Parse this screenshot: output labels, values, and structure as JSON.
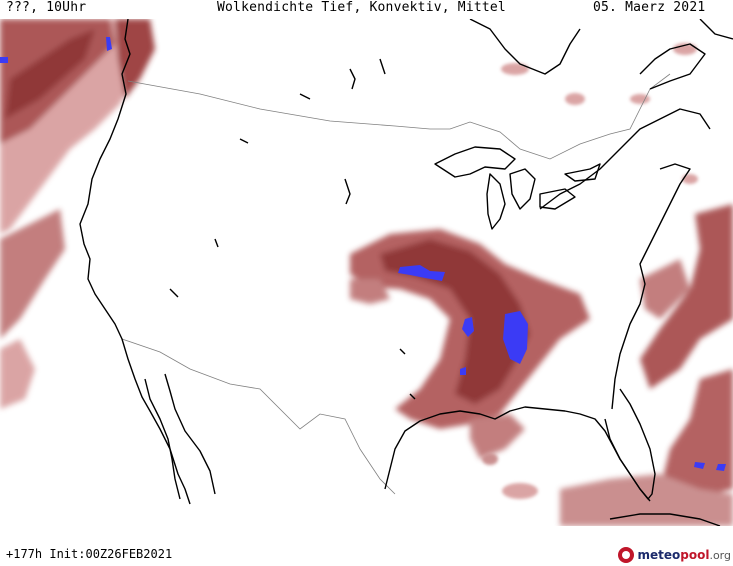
{
  "header": {
    "left": "???, 10Uhr",
    "title": "Wolkendichte  Tief, Konvektiv, Mittel",
    "date": "05. Maerz 2021"
  },
  "footer": {
    "run_info": "+177h Init:00Z26FEB2021",
    "logo": {
      "brand_a": "meteo",
      "brand_b": "pool",
      "brand_c": ".org"
    }
  },
  "legend_colors": {
    "cloud_dark": "#8b2e2e",
    "cloud_mid": "#b05a5a",
    "cloud_light": "#d9a0a0",
    "convective": "#3b3bf5",
    "coast": "#000000",
    "border": "#808080"
  }
}
